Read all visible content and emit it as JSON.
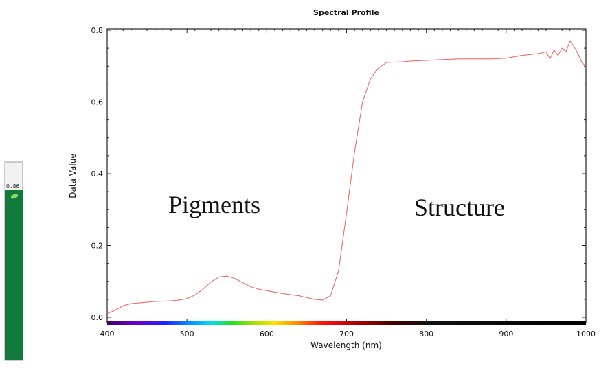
{
  "gauge": {
    "value_label": "0.86",
    "value": 0.86,
    "fill_color": "#137a3d",
    "leaf_icon": "leaf-icon"
  },
  "chart_data": {
    "type": "line",
    "title": "Spectral Profile",
    "xlabel": "Wavelength (nm)",
    "ylabel": "Data Value",
    "xlim": [
      400,
      1000
    ],
    "ylim": [
      0,
      0.8
    ],
    "x_ticks": [
      "400",
      "500",
      "600",
      "700",
      "800",
      "900",
      "1000"
    ],
    "y_ticks": [
      "0.0",
      "0.2",
      "0.4",
      "0.6",
      "0.8"
    ],
    "grid": false,
    "line_color": "#f06a6a",
    "annotations": [
      {
        "text": "Pigments",
        "x": 535,
        "y": 0.31
      },
      {
        "text": "Structure",
        "x": 780,
        "y": 0.3
      }
    ],
    "series": [
      {
        "x": [
          400,
          410,
          420,
          430,
          440,
          450,
          460,
          470,
          480,
          490,
          500,
          510,
          520,
          530,
          540,
          550,
          560,
          570,
          580,
          590,
          600,
          610,
          620,
          630,
          640,
          650,
          660,
          670,
          680,
          690,
          700,
          710,
          720,
          730,
          740,
          750,
          760,
          770,
          780,
          790,
          800,
          820,
          840,
          860,
          880,
          900,
          920,
          940,
          950,
          955,
          960,
          965,
          970,
          975,
          980,
          985,
          990,
          995,
          1000
        ],
        "y": [
          0.01,
          0.02,
          0.032,
          0.038,
          0.04,
          0.042,
          0.044,
          0.045,
          0.046,
          0.048,
          0.052,
          0.062,
          0.078,
          0.098,
          0.112,
          0.115,
          0.108,
          0.096,
          0.085,
          0.078,
          0.074,
          0.07,
          0.066,
          0.063,
          0.06,
          0.055,
          0.05,
          0.048,
          0.06,
          0.13,
          0.29,
          0.46,
          0.6,
          0.665,
          0.695,
          0.71,
          0.711,
          0.712,
          0.714,
          0.715,
          0.716,
          0.718,
          0.72,
          0.72,
          0.72,
          0.722,
          0.73,
          0.735,
          0.74,
          0.72,
          0.745,
          0.73,
          0.75,
          0.74,
          0.77,
          0.755,
          0.735,
          0.71,
          0.7
        ]
      }
    ]
  }
}
